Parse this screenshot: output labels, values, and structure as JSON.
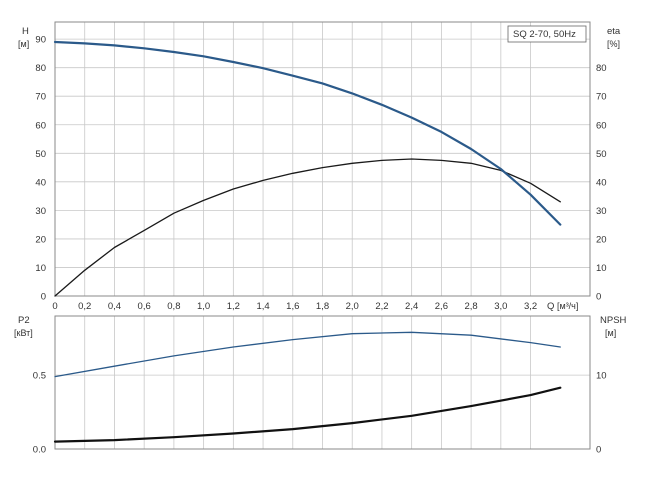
{
  "chart_data": [
    {
      "type": "line",
      "panel": "top",
      "legend": "SQ 2-70, 50Hz",
      "legend_placement": "top-right",
      "x_axis": {
        "label": "Q",
        "unit": "[м³/ч]",
        "ticks": [
          "0",
          "0,2",
          "0,4",
          "0,6",
          "0,8",
          "1,0",
          "1,2",
          "1,4",
          "1,6",
          "1,8",
          "2,0",
          "2,2",
          "2,4",
          "2,6",
          "2,8",
          "3,0",
          "3,2"
        ],
        "xlim": [
          0,
          3.6
        ]
      },
      "y_left": {
        "label": "H",
        "unit": "[м]",
        "ticks": [
          "0",
          "10",
          "20",
          "30",
          "40",
          "50",
          "60",
          "70",
          "80",
          "90"
        ],
        "ylim": [
          0,
          96
        ]
      },
      "y_right": {
        "label": "eta",
        "unit": "[%]",
        "ticks": [
          "0",
          "10",
          "20",
          "30",
          "40",
          "50",
          "60",
          "70",
          "80"
        ],
        "ylim": [
          0,
          96
        ]
      },
      "grid": true,
      "series": [
        {
          "axis": "left",
          "color": "#2b5a8a",
          "x": [
            0,
            0.2,
            0.4,
            0.6,
            0.8,
            1.0,
            1.2,
            1.4,
            1.6,
            1.8,
            2.0,
            2.2,
            2.4,
            2.6,
            2.8,
            3.0,
            3.2,
            3.4
          ],
          "y": [
            89,
            88.5,
            87.8,
            86.8,
            85.5,
            84,
            82,
            79.8,
            77.2,
            74.5,
            71,
            67,
            62.5,
            57.5,
            51.5,
            44.5,
            35.5,
            25
          ]
        },
        {
          "axis": "right",
          "color": "#1a1a1a",
          "x": [
            0,
            0.2,
            0.4,
            0.6,
            0.8,
            1.0,
            1.2,
            1.4,
            1.6,
            1.8,
            2.0,
            2.2,
            2.4,
            2.6,
            2.8,
            3.0,
            3.2,
            3.4
          ],
          "y": [
            0,
            9,
            17,
            23,
            29,
            33.5,
            37.5,
            40.5,
            43,
            45,
            46.5,
            47.5,
            48,
            47.5,
            46.5,
            44,
            39.5,
            33
          ]
        }
      ]
    },
    {
      "type": "line",
      "panel": "bottom",
      "x_axis": {
        "xlim": [
          0,
          3.6
        ]
      },
      "y_left": {
        "label": "P2",
        "unit": "[кВт]",
        "ticks": [
          "0.0",
          "0.5"
        ],
        "ylim": [
          0,
          0.9
        ]
      },
      "y_right": {
        "label": "NPSH",
        "unit": "[м]",
        "ticks": [
          "0",
          "10"
        ],
        "ylim": [
          0,
          18
        ]
      },
      "grid": true,
      "series": [
        {
          "axis": "left",
          "color": "#2b5a8a",
          "x": [
            0,
            0.4,
            0.8,
            1.2,
            1.6,
            2.0,
            2.4,
            2.8,
            3.2,
            3.4
          ],
          "y": [
            0.49,
            0.56,
            0.63,
            0.69,
            0.74,
            0.78,
            0.79,
            0.77,
            0.72,
            0.69
          ]
        },
        {
          "axis": "right",
          "color": "#111111",
          "x": [
            0,
            0.4,
            0.8,
            1.2,
            1.6,
            2.0,
            2.4,
            2.8,
            3.2,
            3.4
          ],
          "y": [
            1,
            1.2,
            1.6,
            2.1,
            2.7,
            3.5,
            4.5,
            5.8,
            7.3,
            8.3
          ]
        }
      ]
    }
  ]
}
